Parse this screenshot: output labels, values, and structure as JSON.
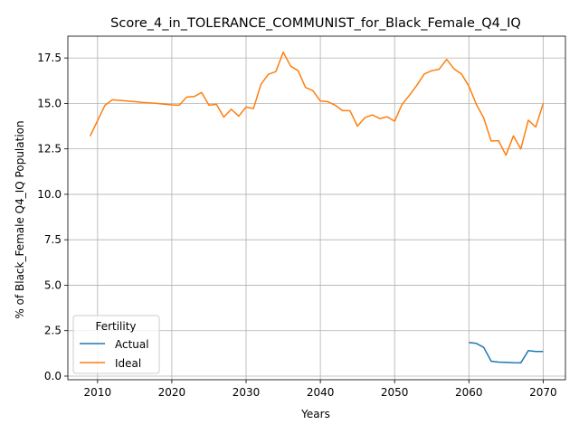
{
  "chart_data": {
    "type": "line",
    "title": "Score_4_in_TOLERANCE_COMMUNIST_for_Black_Female_Q4_IQ",
    "xlabel": "Years",
    "ylabel": "% of Black_Female Q4_IQ Population",
    "xlim": [
      2006,
      2073
    ],
    "ylim": [
      -0.2,
      18.7
    ],
    "xticks": [
      2010,
      2020,
      2030,
      2040,
      2050,
      2060,
      2070
    ],
    "yticks": [
      0.0,
      2.5,
      5.0,
      7.5,
      10.0,
      12.5,
      15.0,
      17.5
    ],
    "ytick_labels": [
      "0.0",
      "2.5",
      "5.0",
      "7.5",
      "10.0",
      "12.5",
      "15.0",
      "17.5"
    ],
    "grid": true,
    "legend": {
      "title": "Fertility",
      "placement": "lower-left"
    },
    "series": [
      {
        "name": "Actual",
        "color": "#1f77b4",
        "x": [
          2060,
          2061,
          2062,
          2063,
          2064,
          2065,
          2066,
          2067,
          2068,
          2069,
          2070
        ],
        "y": [
          1.85,
          1.8,
          1.58,
          0.82,
          0.77,
          0.76,
          0.74,
          0.73,
          1.4,
          1.35,
          1.35
        ]
      },
      {
        "name": "Ideal",
        "color": "#ff7f0e",
        "x": [
          2009,
          2010,
          2011,
          2012,
          2013,
          2014,
          2015,
          2016,
          2017,
          2018,
          2019,
          2020,
          2021,
          2022,
          2023,
          2024,
          2025,
          2026,
          2027,
          2028,
          2029,
          2030,
          2031,
          2032,
          2033,
          2034,
          2035,
          2036,
          2037,
          2038,
          2039,
          2040,
          2041,
          2042,
          2043,
          2044,
          2045,
          2046,
          2047,
          2048,
          2049,
          2050,
          2051,
          2052,
          2053,
          2054,
          2055,
          2056,
          2057,
          2058,
          2059,
          2060,
          2061,
          2062,
          2063,
          2064,
          2065,
          2066,
          2067,
          2068,
          2069,
          2070
        ],
        "y": [
          13.2,
          14.05,
          14.9,
          15.2,
          15.17,
          15.13,
          15.1,
          15.06,
          15.03,
          15.0,
          14.96,
          14.92,
          14.9,
          15.35,
          15.38,
          15.6,
          14.9,
          14.95,
          14.25,
          14.68,
          14.3,
          14.8,
          14.72,
          16.05,
          16.6,
          16.75,
          17.82,
          17.05,
          16.8,
          15.88,
          15.7,
          15.13,
          15.1,
          14.9,
          14.6,
          14.6,
          13.75,
          14.22,
          14.37,
          14.17,
          14.27,
          14.02,
          14.95,
          15.45,
          16.0,
          16.62,
          16.8,
          16.88,
          17.42,
          16.9,
          16.62,
          15.95,
          14.95,
          14.2,
          12.93,
          12.95,
          12.15,
          13.22,
          12.5,
          14.08,
          13.7,
          15.0
        ]
      }
    ]
  }
}
